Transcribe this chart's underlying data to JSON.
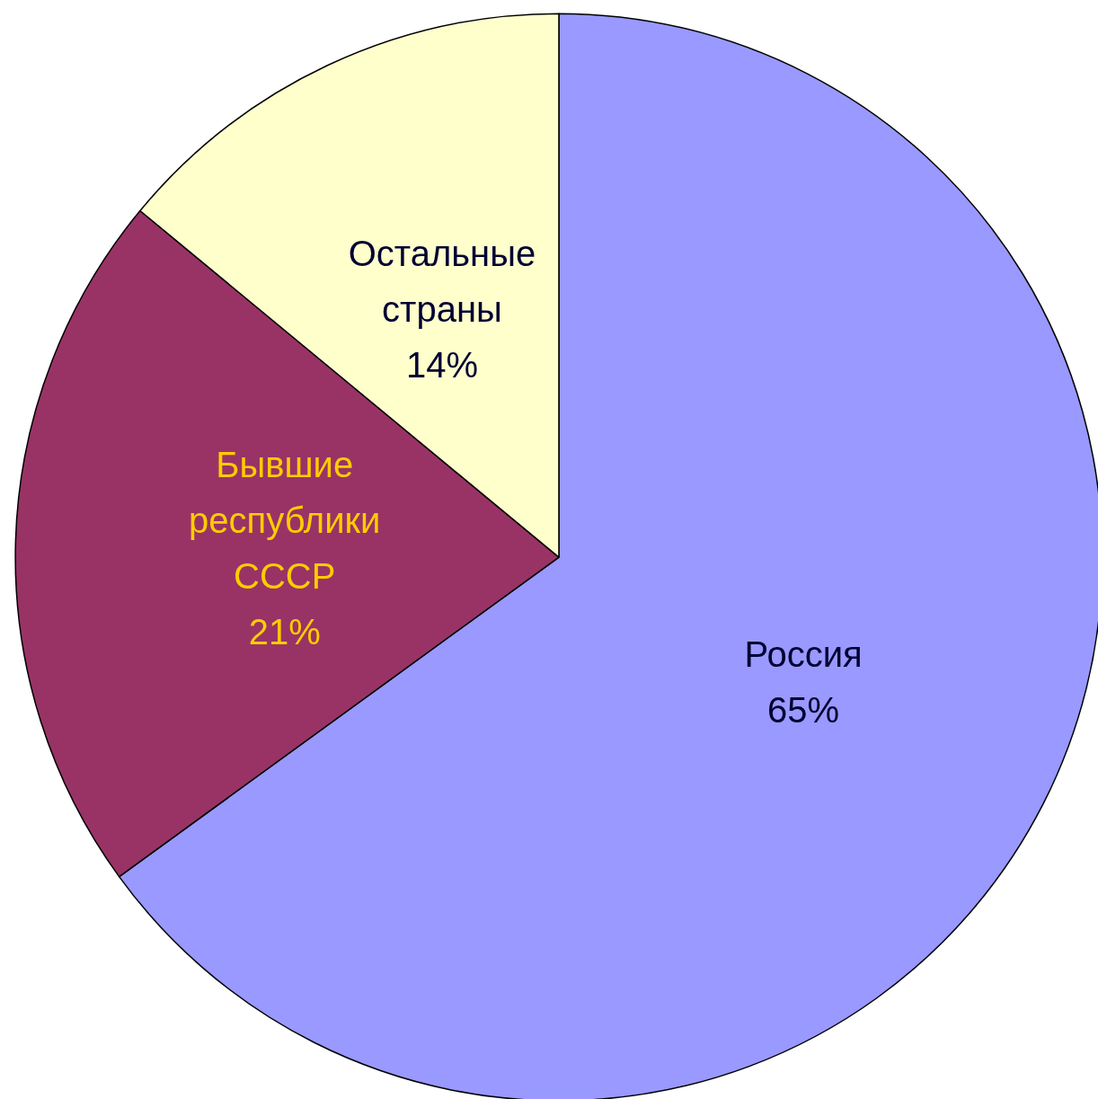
{
  "chart_data": {
    "type": "pie",
    "categories": [
      "Россия",
      "Бывшие республики СССР",
      "Остальные страны"
    ],
    "values": [
      65,
      21,
      14
    ],
    "colors": [
      "#9999ff",
      "#993366",
      "#ffffcc"
    ],
    "value_labels": [
      "65%",
      "21%",
      "14%"
    ]
  }
}
